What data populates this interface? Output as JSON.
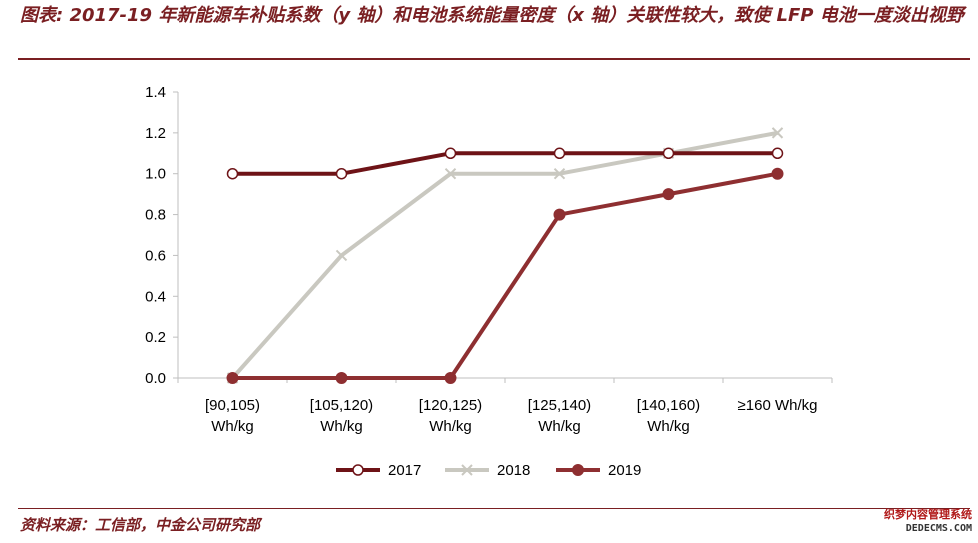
{
  "title": "图表: 2017-19 年新能源车补贴系数（y 轴）和电池系统能量密度（x 轴）关联性较大，致使 LFP 电池一度淡出视野",
  "source": "资料来源：工信部，中金公司研究部",
  "watermark": {
    "line1": "织梦内容管理系统",
    "line2": "DEDECMS.COM"
  },
  "chart_data": {
    "type": "line",
    "title": "",
    "xlabel": "",
    "ylabel": "",
    "categories": [
      [
        "[90,105)",
        "Wh/kg"
      ],
      [
        "[105,120)",
        "Wh/kg"
      ],
      [
        "[120,125)",
        "Wh/kg"
      ],
      [
        "[125,140)",
        "Wh/kg"
      ],
      [
        "[140,160)",
        "Wh/kg"
      ],
      [
        "≥160 Wh/kg"
      ]
    ],
    "ylim": [
      0,
      1.4
    ],
    "yticks": [
      "0.0",
      "0.2",
      "0.4",
      "0.6",
      "0.8",
      "1.0",
      "1.2",
      "1.4"
    ],
    "grid": false,
    "legend_position": "bottom",
    "series": [
      {
        "name": "2017",
        "values": [
          1.0,
          1.0,
          1.1,
          1.1,
          1.1,
          1.1
        ],
        "color": "#6e1317",
        "marker": "circle-open"
      },
      {
        "name": "2018",
        "values": [
          0.0,
          0.6,
          1.0,
          1.0,
          1.1,
          1.2
        ],
        "color": "#c9c8c0",
        "marker": "x"
      },
      {
        "name": "2019",
        "values": [
          0.0,
          0.0,
          0.0,
          0.8,
          0.9,
          1.0
        ],
        "color": "#8e2f31",
        "marker": "circle-filled"
      }
    ]
  }
}
